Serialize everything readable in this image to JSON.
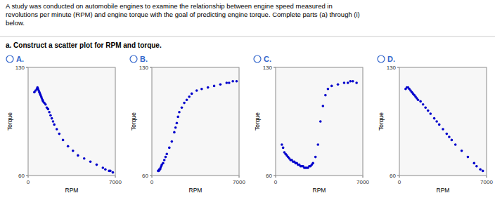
{
  "paragraph": "A study was conducted on automobile engines to examine the relationship between engine speed measured in\nrevolutions per minute (RPM) and engine torque with the goal of predicting engine torque. Complete parts (a) through (i)\nbelow.",
  "question": "a. Construct a scatter plot for RPM and torque.",
  "chart_data": [
    {
      "type": "scatter",
      "title": "A.",
      "xlabel": "RPM",
      "ylabel": "Torque",
      "xlim": [
        0,
        7000
      ],
      "ylim": [
        60,
        130
      ],
      "xticks": [
        0,
        7000
      ],
      "yticks": [
        60,
        130
      ],
      "grid": true,
      "color": "#0000cc",
      "x": [
        500,
        600,
        700,
        750,
        800,
        850,
        900,
        950,
        1000,
        1050,
        1100,
        1150,
        1200,
        1300,
        1400,
        1500,
        1600,
        1700,
        1800,
        1900,
        2000,
        2100,
        2300,
        2500,
        2800,
        3200,
        3600,
        4000,
        4500,
        5000,
        5500,
        6000,
        6200,
        6500,
        6600,
        6800
      ],
      "values": [
        114,
        115,
        116,
        117,
        116,
        115,
        114,
        113,
        112,
        111,
        110,
        109,
        108,
        107,
        106,
        104,
        103,
        101,
        99,
        97,
        95,
        93,
        90,
        87,
        83,
        79,
        76,
        73,
        71,
        69,
        67,
        65,
        64,
        63,
        63,
        62
      ]
    },
    {
      "type": "scatter",
      "title": "B.",
      "xlabel": "RPM",
      "ylabel": "Torque",
      "xlim": [
        0,
        7000
      ],
      "ylim": [
        60,
        130
      ],
      "xticks": [
        0,
        7000
      ],
      "yticks": [
        60,
        130
      ],
      "grid": true,
      "color": "#0000cc",
      "x": [
        500,
        550,
        600,
        650,
        700,
        750,
        800,
        900,
        1000,
        1100,
        1200,
        1400,
        1600,
        1800,
        1900,
        2000,
        2100,
        2200,
        2400,
        2600,
        2800,
        3000,
        3200,
        3600,
        4000,
        4500,
        5000,
        5500,
        6000,
        6200,
        6500,
        6800
      ],
      "values": [
        63,
        63,
        64,
        64,
        65,
        66,
        67,
        68,
        70,
        72,
        74,
        78,
        82,
        88,
        91,
        94,
        98,
        101,
        104,
        107,
        109,
        111,
        113,
        115,
        116,
        117,
        118,
        119,
        120,
        120,
        121,
        121
      ]
    },
    {
      "type": "scatter",
      "title": "C.",
      "xlabel": "RPM",
      "ylabel": "Torque",
      "xlim": [
        0,
        7000
      ],
      "ylim": [
        60,
        130
      ],
      "xticks": [
        0,
        7000
      ],
      "yticks": [
        60,
        130
      ],
      "grid": true,
      "color": "#0000cc",
      "x": [
        500,
        600,
        700,
        800,
        900,
        1000,
        1100,
        1200,
        1300,
        1400,
        1500,
        1600,
        1700,
        1800,
        1900,
        2000,
        2100,
        2200,
        2300,
        2400,
        2500,
        2600,
        2700,
        2800,
        2900,
        3000,
        3200,
        3400,
        3600,
        3800,
        4000,
        4200,
        4500,
        5000,
        5500,
        5800,
        6000,
        6200,
        6500
      ],
      "values": [
        80,
        78,
        75,
        74,
        73,
        72,
        71,
        70,
        70,
        69,
        69,
        68,
        68,
        67,
        67,
        66,
        66,
        66,
        65,
        65,
        65,
        65,
        66,
        66,
        67,
        68,
        72,
        80,
        95,
        105,
        112,
        116,
        118,
        119,
        120,
        120,
        121,
        121,
        120
      ]
    },
    {
      "type": "scatter",
      "title": "D.",
      "xlabel": "RPM",
      "ylabel": "Torque",
      "xlim": [
        0,
        7000
      ],
      "ylim": [
        60,
        130
      ],
      "xticks": [
        0,
        7000
      ],
      "yticks": [
        60,
        130
      ],
      "grid": true,
      "color": "#0000cc",
      "x": [
        500,
        600,
        700,
        800,
        900,
        1000,
        1100,
        1200,
        1300,
        1400,
        1500,
        1700,
        1900,
        2100,
        2300,
        2500,
        2800,
        3000,
        3200,
        3500,
        3800,
        4000,
        4200,
        4500,
        5000,
        5500,
        6000,
        6200,
        6500,
        6700
      ],
      "values": [
        116,
        117,
        117,
        116,
        115,
        114,
        113,
        112,
        111,
        110,
        109,
        108,
        106,
        104,
        102,
        100,
        97,
        95,
        93,
        90,
        87,
        85,
        83,
        80,
        76,
        72,
        68,
        66,
        64,
        63
      ]
    }
  ]
}
